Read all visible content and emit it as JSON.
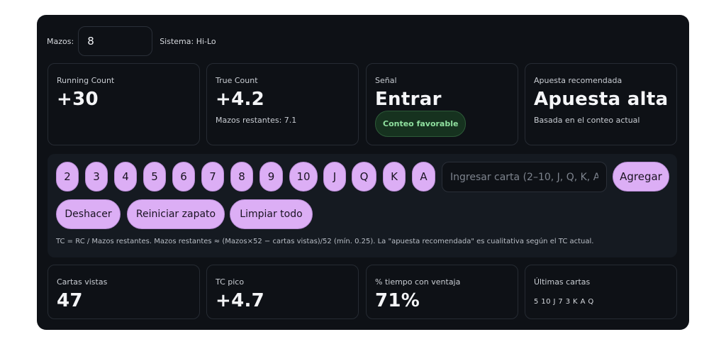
{
  "header": {
    "decks_label": "Mazos:",
    "decks_value": "8",
    "system_label": "Sistema: Hi-Lo"
  },
  "stats": {
    "running_count": {
      "label": "Running Count",
      "value": "+30"
    },
    "true_count": {
      "label": "True Count",
      "value": "+4.2",
      "sub": "Mazos restantes: 7.1"
    },
    "signal": {
      "label": "Señal",
      "value": "Entrar",
      "badge": "Conteo favorable"
    },
    "bet": {
      "label": "Apuesta recomendada",
      "value": "Apuesta alta",
      "sub": "Basada en el conteo actual"
    }
  },
  "card_buttons": [
    "2",
    "3",
    "4",
    "5",
    "6",
    "7",
    "8",
    "9",
    "10",
    "J",
    "Q",
    "K",
    "A"
  ],
  "card_input": {
    "placeholder": "Ingresar carta (2–10, J, Q, K, A)",
    "value": ""
  },
  "add_button": "Agregar",
  "actions": {
    "undo": "Deshacer",
    "reset_shoe": "Reiniciar zapato",
    "clear_all": "Limpiar todo"
  },
  "note": "TC = RC / Mazos restantes. Mazos restantes ≈ (Mazos×52 − cartas vistas)/52 (mín. 0.25). La \"apuesta recomendada\" es cualitativa según el TC actual.",
  "summary": {
    "cards_seen": {
      "label": "Cartas vistas",
      "value": "47"
    },
    "peak_tc": {
      "label": "TC pico",
      "value": "+4.7"
    },
    "advantage_time": {
      "label": "% tiempo con ventaja",
      "value": "71%"
    },
    "last_cards": {
      "label": "Últimas cartas",
      "value": "5 10 J 7 3 K A Q"
    }
  },
  "colors": {
    "panel_bg": "#0e1116",
    "accent_button": "#dcaef5",
    "favorable_badge": "#8fe09f"
  }
}
